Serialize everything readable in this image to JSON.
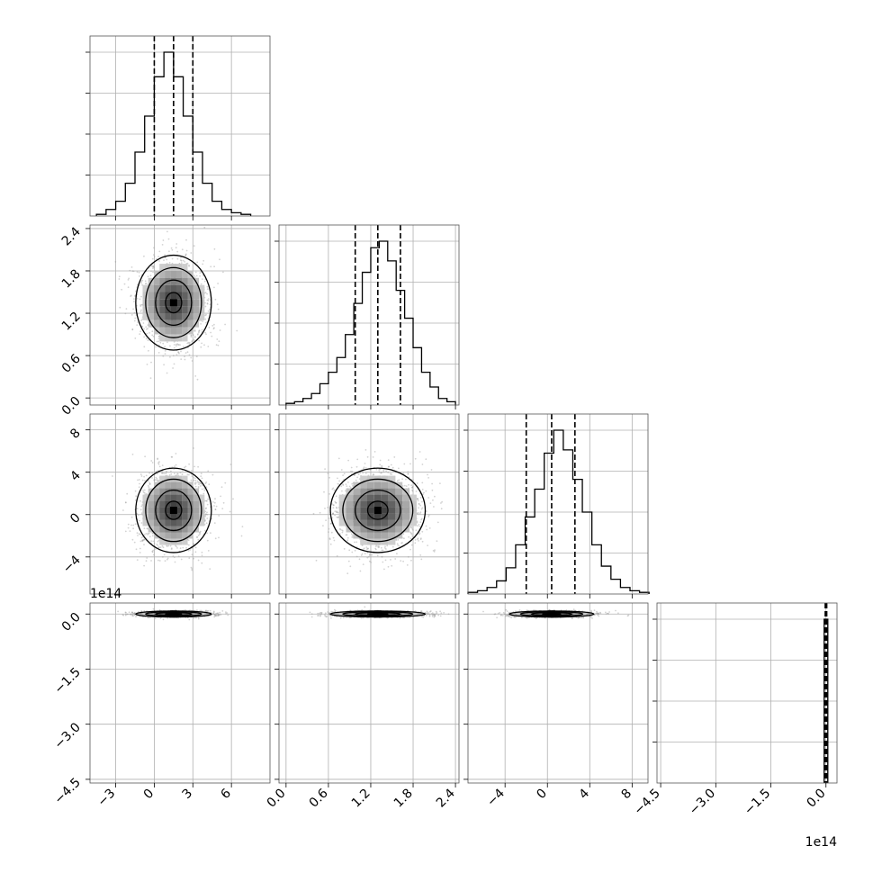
{
  "chart_data": {
    "type": "corner",
    "title": "",
    "variables": [
      {
        "range": [
          -5,
          9
        ],
        "ticks": [
          -3,
          0,
          3,
          6
        ],
        "tick_labels": [
          "−3",
          "0",
          "3",
          "6"
        ],
        "quantiles": [
          0.0,
          1.5,
          3.0
        ]
      },
      {
        "range": [
          -0.1,
          2.45
        ],
        "ticks": [
          0.0,
          0.6,
          1.2,
          1.8,
          2.4
        ],
        "tick_labels": [
          "0.0",
          "0.6",
          "1.2",
          "1.8",
          "2.4"
        ],
        "quantiles": [
          0.98,
          1.3,
          1.62
        ]
      },
      {
        "range": [
          -7.5,
          9.5
        ],
        "ticks": [
          -4,
          0,
          4,
          8
        ],
        "tick_labels": [
          "−4",
          "0",
          "4",
          "8"
        ],
        "quantiles": [
          -2.0,
          0.4,
          2.6
        ]
      },
      {
        "range": [
          -4.6,
          0.3
        ],
        "ticks": [
          -4.5,
          -3.0,
          -1.5,
          0.0
        ],
        "tick_labels": [
          "−4.5",
          "−3.0",
          "−1.5",
          "0.0"
        ],
        "quantiles": [
          -0.02,
          0.0,
          0.02
        ],
        "offset_label": "1e14"
      }
    ],
    "histograms": [
      {
        "bin_edges": [
          -4.5,
          -3.75,
          -3.0,
          -2.25,
          -1.5,
          -0.75,
          0.0,
          0.75,
          1.5,
          2.25,
          3.0,
          3.75,
          4.5,
          5.25,
          6.0,
          6.75,
          7.5
        ],
        "counts": [
          1,
          4,
          9,
          20,
          39,
          61,
          85,
          100,
          85,
          61,
          39,
          20,
          9,
          4,
          2,
          1
        ]
      },
      {
        "bin_edges": [
          0.0,
          0.12,
          0.24,
          0.36,
          0.48,
          0.6,
          0.72,
          0.84,
          0.96,
          1.08,
          1.2,
          1.32,
          1.44,
          1.56,
          1.68,
          1.8,
          1.92,
          2.04,
          2.16,
          2.28,
          2.4
        ],
        "counts": [
          1,
          2,
          4,
          7,
          13,
          20,
          29,
          43,
          62,
          81,
          96,
          100,
          88,
          70,
          53,
          35,
          20,
          11,
          4,
          2
        ]
      },
      {
        "bin_edges": [
          -7.5,
          -6.6,
          -5.7,
          -4.8,
          -3.9,
          -3.0,
          -2.1,
          -1.2,
          -0.3,
          0.6,
          1.5,
          2.4,
          3.3,
          4.2,
          5.1,
          6.0,
          6.9,
          7.8,
          8.7,
          9.6
        ],
        "counts": [
          1,
          2,
          4,
          8,
          16,
          30,
          47,
          64,
          86,
          100,
          88,
          70,
          50,
          30,
          17,
          9,
          4,
          2,
          1
        ]
      },
      {
        "bin_edges": [
          -0.05,
          0.0,
          0.05
        ],
        "counts": [
          100,
          100
        ]
      }
    ],
    "joint_2d": [
      {
        "row": 1,
        "col": 0,
        "center": [
          1.5,
          1.35
        ],
        "spread": [
          1.4,
          0.32
        ]
      },
      {
        "row": 2,
        "col": 0,
        "center": [
          1.5,
          0.4
        ],
        "spread": [
          1.4,
          1.9
        ]
      },
      {
        "row": 2,
        "col": 1,
        "center": [
          1.3,
          0.4
        ],
        "spread": [
          0.32,
          1.9
        ]
      },
      {
        "row": 3,
        "col": 0,
        "center": [
          1.5,
          0.0
        ],
        "spread": [
          1.4,
          0.04
        ]
      },
      {
        "row": 3,
        "col": 1,
        "center": [
          1.3,
          0.0
        ],
        "spread": [
          0.32,
          0.04
        ]
      },
      {
        "row": 3,
        "col": 2,
        "center": [
          0.4,
          0.0
        ],
        "spread": [
          1.9,
          0.04
        ]
      }
    ],
    "grid": true,
    "contour_levels": 4,
    "colors": {
      "line": "#000000",
      "grid": "#b0b0b0",
      "points": "#9e9e9e"
    }
  }
}
